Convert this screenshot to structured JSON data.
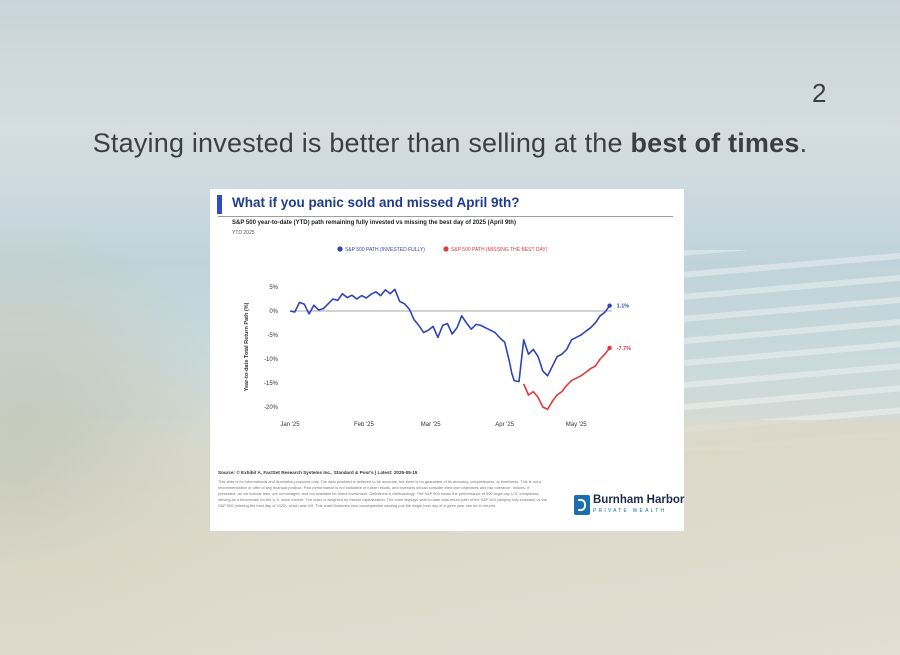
{
  "slide": {
    "page_number": "2",
    "headline_pre": "Staying invested is better than selling at the ",
    "headline_bold": "best of times",
    "headline_post": "."
  },
  "card": {
    "title": "What if you panic sold and missed April 9th?",
    "subtitle": "S&P 500 year-to-date (YTD) path remaining fully invested vs missing the best day of 2025 (April 9th)",
    "period": "YTD 2025",
    "source": "Source: © Exhibit A, FactSet Research Systems Inc., Standard & Poor's | Latest: 2025-05-15",
    "disclaimer": "This slide is for informational and illustrative purposes only. The data provided is believed to be accurate, but there is no guarantee of its accuracy, completeness, or timeliness. This is not a recommendation or offer of any financial product. Past performance is not indicative of future results, and investors should consider their own objectives and risk tolerance. Indices, if presented, do not include fees, are unmanaged, and not available for direct investment. Definitions & Methodology: The S&P 500 tracks the performance of 500 large-cap U.S. companies, serving as a benchmark for the U.S. stock market. The index is weighted by market capitalization. The chart displays year-to-date total return path of the S&P 500 (staying fully invested) vs the S&P 500 (missing the best day of 2025), which was 4/9. This chart illustrates how consequential missing just the single best day of a given year can be to returns.",
    "logo_name": "Burnham Harbor",
    "logo_sub": "PRIVATE WEALTH"
  },
  "chart_data": {
    "type": "line",
    "title": "What if you panic sold and missed April 9th?",
    "ylabel": "Year-to-date Total Return Path (%)",
    "xlabel": "",
    "ylim": [
      -22,
      6
    ],
    "yticks": [
      5,
      0,
      -5,
      -10,
      -15,
      -20
    ],
    "ytick_labels": [
      "5%",
      "0%",
      "-5%",
      "-10%",
      "-15%",
      "-20%"
    ],
    "xlim": [
      0,
      135
    ],
    "xticks": [
      0,
      31,
      59,
      90,
      120
    ],
    "xtick_labels": [
      "Jan '25",
      "Feb '25",
      "Mar '25",
      "Apr '25",
      "May '25"
    ],
    "zero_line": true,
    "legend_position": "top",
    "series": [
      {
        "name": "S&P 500 PATH (INVESTED FULLY)",
        "color": "#2e45b8",
        "end_label": "1.1%",
        "x": [
          0,
          2,
          4,
          6,
          8,
          10,
          12,
          14,
          16,
          18,
          20,
          22,
          24,
          26,
          28,
          30,
          32,
          34,
          36,
          38,
          40,
          42,
          44,
          46,
          48,
          50,
          52,
          54,
          56,
          58,
          60,
          62,
          64,
          66,
          68,
          70,
          72,
          74,
          76,
          78,
          80,
          82,
          84,
          86,
          88,
          90,
          92,
          93,
          94,
          96,
          98,
          100,
          102,
          104,
          106,
          108,
          110,
          112,
          114,
          116,
          118,
          120,
          122,
          124,
          126,
          128,
          130,
          132,
          134
        ],
        "y": [
          0,
          -0.2,
          1.8,
          1.4,
          -0.6,
          1.2,
          0.2,
          0.5,
          1.5,
          2.5,
          2.2,
          3.6,
          2.8,
          3.3,
          2.5,
          3.2,
          2.7,
          3.5,
          4.0,
          3.2,
          4.4,
          3.6,
          4.5,
          2.0,
          1.5,
          0.4,
          -1.8,
          -3.0,
          -4.5,
          -4.0,
          -3.2,
          -5.5,
          -3.0,
          -2.6,
          -4.8,
          -3.5,
          -1.0,
          -2.5,
          -3.8,
          -2.8,
          -3.0,
          -3.5,
          -4.0,
          -4.5,
          -5.6,
          -6.5,
          -10.5,
          -13.0,
          -14.5,
          -14.7,
          -6.0,
          -9.0,
          -8.0,
          -9.5,
          -12.5,
          -13.5,
          -11.5,
          -9.5,
          -9.0,
          -8.0,
          -6.0,
          -5.5,
          -5.0,
          -4.2,
          -3.5,
          -2.5,
          -1.0,
          -0.3,
          1.1
        ]
      },
      {
        "name": "S&P 500 PATH (MISSING THE BEST DAY)",
        "color": "#e03a3a",
        "end_label": "-7.7%",
        "x": [
          98,
          100,
          102,
          104,
          106,
          108,
          110,
          112,
          114,
          116,
          118,
          120,
          122,
          124,
          126,
          128,
          130,
          132,
          134
        ],
        "y": [
          -15.2,
          -17.5,
          -16.8,
          -18.0,
          -20.0,
          -20.5,
          -18.8,
          -17.5,
          -16.8,
          -15.5,
          -14.5,
          -14.0,
          -13.5,
          -12.8,
          -12.0,
          -11.5,
          -10.0,
          -9.0,
          -7.7
        ]
      }
    ]
  }
}
